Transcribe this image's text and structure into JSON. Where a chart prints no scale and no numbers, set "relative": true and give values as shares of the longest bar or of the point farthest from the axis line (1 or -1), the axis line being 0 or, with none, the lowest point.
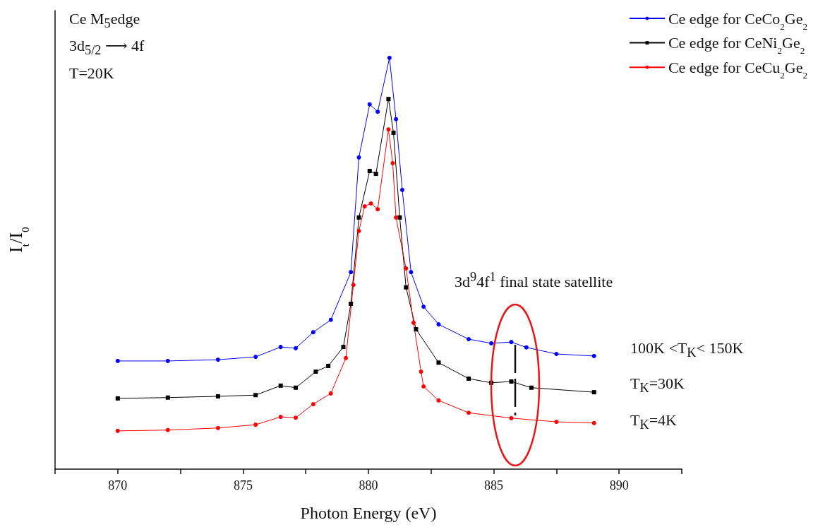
{
  "chart_data": {
    "type": "line",
    "xlabel": "Photon Energy (eV)",
    "ylabel": "I$_{t}$/I$_{0}$",
    "relative": true,
    "legend": "top right",
    "line_style": "solid",
    "grid": false,
    "xlim": [
      867.5,
      892.5
    ],
    "xticks": [
      {
        "value": 867.5,
        "label": null
      },
      870,
      {
        "value": 872.5,
        "label": null
      },
      875,
      {
        "value": 877.5,
        "label": null
      },
      880,
      {
        "value": 882.5,
        "label": null
      },
      885,
      {
        "value": 887.5,
        "label": null
      },
      890,
      {
        "value": 892.5,
        "label": null
      }
    ],
    "series": [
      {
        "name": "Ce edge for CeCo$_{2}$Ge$_{2}$",
        "color": "#0000ff",
        "marker": "circle",
        "x": [
          870,
          872,
          874,
          875.5,
          876.5,
          877.1,
          877.8,
          878.5,
          879.3,
          879.62,
          880.05,
          880.37,
          880.84,
          881.1,
          881.35,
          881.7,
          882.2,
          882.8,
          884,
          884.9,
          885.7,
          886.3,
          887.5,
          889
        ],
        "values": [
          0.263,
          0.263,
          0.266,
          0.273,
          0.297,
          0.294,
          0.333,
          0.363,
          0.479,
          0.758,
          0.887,
          0.869,
          1,
          0.851,
          0.679,
          0.479,
          0.395,
          0.352,
          0.316,
          0.306,
          0.309,
          0.296,
          0.28,
          0.275
        ]
      },
      {
        "name": "Ce edge for CeNi$_{2}$Ge$_{2}$",
        "color": "#000000",
        "marker": "square",
        "x": [
          870,
          872,
          874,
          875.5,
          876.5,
          877.1,
          877.9,
          878.4,
          879,
          879.3,
          879.62,
          880.05,
          880.3,
          880.8,
          881,
          881.25,
          881.5,
          881.9,
          882.8,
          884,
          884.9,
          885.7,
          886.5,
          889
        ],
        "values": [
          0.172,
          0.174,
          0.177,
          0.18,
          0.203,
          0.198,
          0.237,
          0.251,
          0.297,
          0.402,
          0.612,
          0.725,
          0.718,
          0.9,
          0.818,
          0.612,
          0.442,
          0.34,
          0.259,
          0.22,
          0.21,
          0.213,
          0.198,
          0.187
        ]
      },
      {
        "name": "Ce edge for CeCu$_{2}$Ge$_{2}$",
        "color": "#ff0000",
        "marker": "circle",
        "x": [
          870,
          872,
          874,
          875.5,
          876.5,
          877.1,
          877.8,
          878.5,
          879.1,
          879.4,
          879.62,
          879.85,
          880.1,
          880.37,
          880.8,
          880.97,
          881.1,
          881.5,
          881.8,
          882.1,
          882.2,
          882.8,
          884,
          885.7,
          887.5,
          889
        ],
        "values": [
          0.093,
          0.095,
          0.1,
          0.108,
          0.127,
          0.125,
          0.158,
          0.184,
          0.27,
          0.448,
          0.579,
          0.639,
          0.646,
          0.632,
          0.826,
          0.744,
          0.612,
          0.488,
          0.356,
          0.237,
          0.201,
          0.167,
          0.137,
          0.124,
          0.115,
          0.112
        ]
      }
    ],
    "annotations": [
      "Ce M$_{5}$edge",
      "3d$_{5/2}$ ⟶ 4f",
      "T=20K",
      "3d$^{9}$4f$^{1}$ final state satellite",
      "100K <T$_{K}$< 150K",
      "T$_{K}$=30K",
      "T$_{K}$=4K"
    ]
  }
}
